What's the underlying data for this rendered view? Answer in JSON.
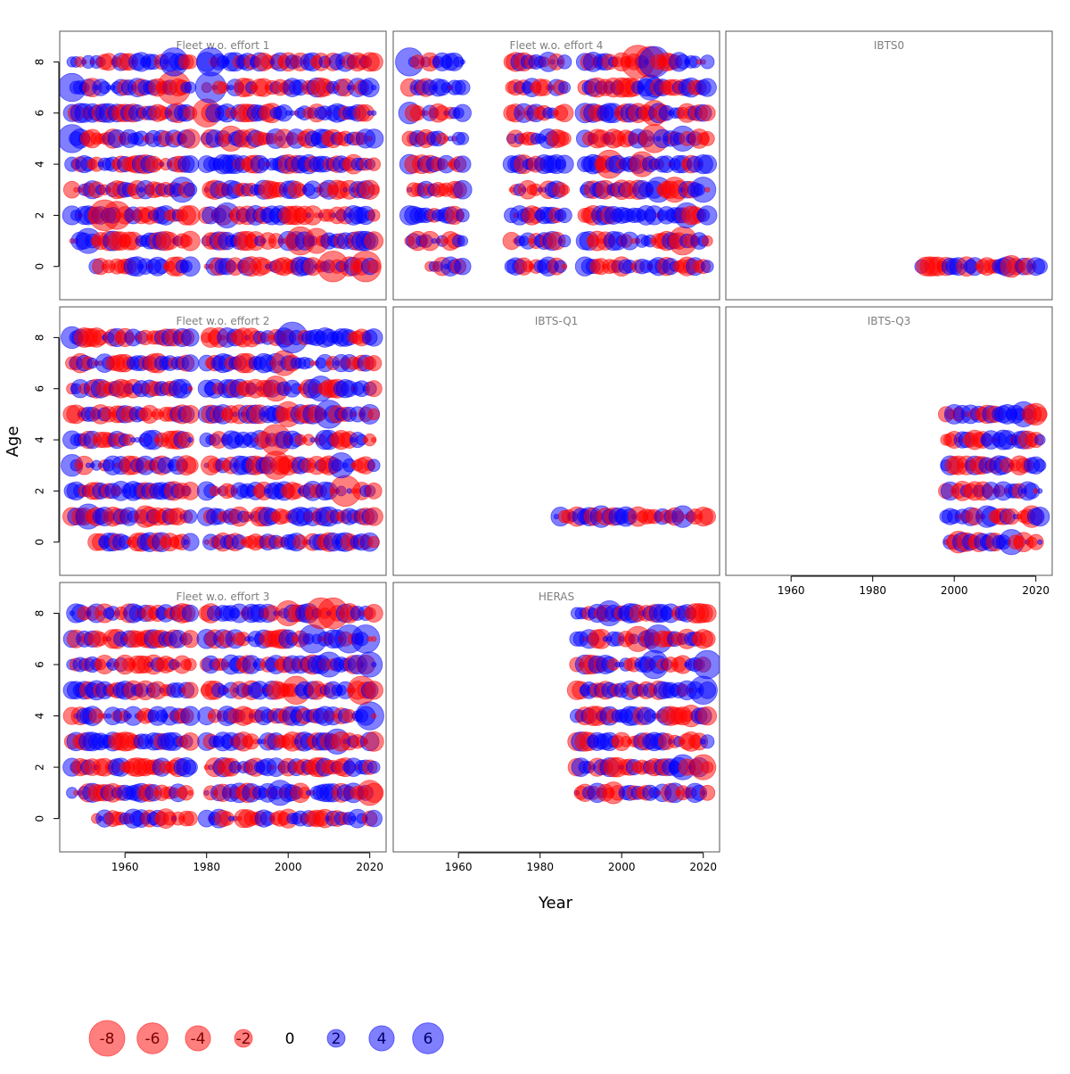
{
  "chart_data": {
    "type": "scatter",
    "subtype": "bubble-residuals",
    "xlabel": "Year",
    "ylabel": "Age",
    "xlim": [
      1944,
      2024
    ],
    "ylim": [
      -1.3,
      9.2
    ],
    "x_ticks": [
      1960,
      1980,
      2000,
      2020
    ],
    "y_ticks": [
      0,
      2,
      4,
      6,
      8
    ],
    "grid": false,
    "colors": {
      "negative": "#ff0000",
      "positive": "#0000ff"
    },
    "legend": {
      "placement": "bottom-left",
      "entries": [
        {
          "value": -8,
          "label": "-8"
        },
        {
          "value": -6,
          "label": "-6"
        },
        {
          "value": -4,
          "label": "-4"
        },
        {
          "value": -2,
          "label": "-2"
        },
        {
          "value": 0,
          "label": "0"
        },
        {
          "value": 2,
          "label": "2"
        },
        {
          "value": 4,
          "label": "4"
        },
        {
          "value": 6,
          "label": "6"
        }
      ]
    },
    "panels": [
      {
        "title": "Fleet w.o. effort 1",
        "row": 0,
        "col": 0,
        "ages": [
          0,
          1,
          2,
          3,
          4,
          5,
          6,
          7,
          8
        ],
        "year_range": [
          1947,
          2021
        ],
        "age0_start": 1953,
        "gaps": [
          [
            1977,
            1979
          ]
        ],
        "strong": [
          [
            1972,
            7,
            -7
          ],
          [
            1981,
            7,
            6
          ],
          [
            1947,
            7,
            5
          ],
          [
            1947,
            5,
            5
          ],
          [
            1955,
            2,
            -6
          ],
          [
            1951,
            1,
            4
          ],
          [
            2011,
            0,
            -6
          ],
          [
            2019,
            0,
            -6
          ],
          [
            2003,
            1,
            -5
          ],
          [
            1980,
            6,
            -5
          ],
          [
            1972,
            8,
            5
          ],
          [
            1981,
            8,
            5
          ],
          [
            1958,
            2,
            -5
          ],
          [
            1985,
            2,
            4
          ],
          [
            2007,
            1,
            -4
          ],
          [
            1974,
            3,
            4
          ],
          [
            1979,
            7,
            -5
          ],
          [
            1986,
            5,
            -4
          ]
        ]
      },
      {
        "title": "Fleet w.o. effort 4",
        "row": 0,
        "col": 1,
        "ages": [
          0,
          1,
          2,
          3,
          4,
          5,
          6,
          7,
          8
        ],
        "year_range": [
          1948,
          2021
        ],
        "age0_start": 1953,
        "gaps": [
          [
            1962,
            1972
          ],
          [
            1987,
            1990
          ]
        ],
        "strong": [
          [
            1948,
            8,
            5
          ],
          [
            1948,
            6,
            3
          ],
          [
            2004,
            8,
            -7
          ],
          [
            2008,
            8,
            6
          ],
          [
            2007,
            8,
            -6
          ],
          [
            2007,
            7,
            4
          ],
          [
            2008,
            6,
            -4
          ],
          [
            2008,
            5,
            -5
          ],
          [
            2015,
            5,
            4
          ],
          [
            1997,
            4,
            -5
          ],
          [
            2009,
            3,
            4
          ],
          [
            2015,
            1,
            -5
          ],
          [
            2013,
            3,
            -4
          ],
          [
            2005,
            4,
            -4
          ],
          [
            2020,
            3,
            4
          ],
          [
            2016,
            2,
            4
          ]
        ]
      },
      {
        "title": "IBTS0",
        "row": 0,
        "col": 2,
        "ages": [
          0
        ],
        "year_range": [
          1992,
          2021
        ],
        "age0_start": 1992,
        "gaps": [],
        "strong": [
          [
            2014,
            0,
            -3
          ],
          [
            2020,
            0,
            2
          ],
          [
            2008,
            0,
            -2
          ],
          [
            2001,
            0,
            2
          ]
        ]
      },
      {
        "title": "Fleet w.o. effort 2",
        "row": 1,
        "col": 0,
        "ages": [
          0,
          1,
          2,
          3,
          4,
          5,
          6,
          7,
          8
        ],
        "year_range": [
          1947,
          2021
        ],
        "age0_start": 1953,
        "gaps": [
          [
            1977,
            1979
          ]
        ],
        "strong": [
          [
            2001,
            8,
            6
          ],
          [
            1997,
            4,
            -6
          ],
          [
            2014,
            2,
            -6
          ],
          [
            1951,
            1,
            4
          ],
          [
            1997,
            3,
            -5
          ],
          [
            2010,
            5,
            5
          ],
          [
            2000,
            5,
            -4
          ],
          [
            2008,
            6,
            4
          ],
          [
            1997,
            6,
            -4
          ],
          [
            2013,
            3,
            4
          ],
          [
            1947,
            8,
            3
          ],
          [
            1947,
            3,
            3
          ],
          [
            1999,
            7,
            -4
          ],
          [
            1965,
            1,
            -3
          ]
        ]
      },
      {
        "title": "IBTS-Q1",
        "row": 1,
        "col": 1,
        "ages": [
          1
        ],
        "year_range": [
          1984,
          2021
        ],
        "age0_start": 1984,
        "gaps": [],
        "strong": [
          [
            2015,
            1,
            3
          ],
          [
            1995,
            1,
            3
          ]
        ]
      },
      {
        "title": "IBTS-Q3",
        "row": 1,
        "col": 2,
        "ages": [
          0,
          1,
          2,
          3,
          4,
          5
        ],
        "year_range": [
          1998,
          2021
        ],
        "age0_start": 1998,
        "gaps": [],
        "strong": [
          [
            2014,
            0,
            4
          ],
          [
            2001,
            0,
            -3
          ],
          [
            2019,
            1,
            -3
          ],
          [
            2017,
            5,
            4
          ],
          [
            2008,
            1,
            3
          ],
          [
            2020,
            5,
            -3
          ]
        ]
      },
      {
        "title": "Fleet w.o. effort 3",
        "row": 2,
        "col": 0,
        "ages": [
          0,
          1,
          2,
          3,
          4,
          5,
          6,
          7,
          8
        ],
        "year_range": [
          1947,
          2021
        ],
        "age0_start": 1953,
        "gaps": [
          [
            1977,
            1979
          ]
        ],
        "strong": [
          [
            2008,
            8,
            -6
          ],
          [
            2011,
            8,
            -6
          ],
          [
            2015,
            7,
            5
          ],
          [
            2019,
            7,
            5
          ],
          [
            2002,
            5,
            -5
          ],
          [
            2020,
            4,
            5
          ],
          [
            2020,
            1,
            -4
          ],
          [
            1998,
            1,
            4
          ],
          [
            2018,
            5,
            -5
          ],
          [
            2010,
            6,
            4
          ],
          [
            2000,
            8,
            -4
          ],
          [
            2006,
            7,
            5
          ],
          [
            2012,
            3,
            4
          ],
          [
            2020,
            6,
            4
          ]
        ]
      },
      {
        "title": "HERAS",
        "row": 2,
        "col": 1,
        "ages": [
          1,
          2,
          3,
          4,
          5,
          6,
          7,
          8
        ],
        "year_range": [
          1989,
          2021
        ],
        "age0_start": 1989,
        "gaps": [],
        "strong": [
          [
            2021,
            6,
            5
          ],
          [
            2008,
            6,
            5
          ],
          [
            2020,
            5,
            5
          ],
          [
            2009,
            7,
            5
          ],
          [
            1997,
            8,
            4
          ],
          [
            2004,
            7,
            -4
          ],
          [
            2015,
            2,
            4
          ],
          [
            2020,
            2,
            -4
          ],
          [
            1998,
            1,
            -3
          ],
          [
            2017,
            4,
            -3
          ]
        ]
      }
    ]
  }
}
